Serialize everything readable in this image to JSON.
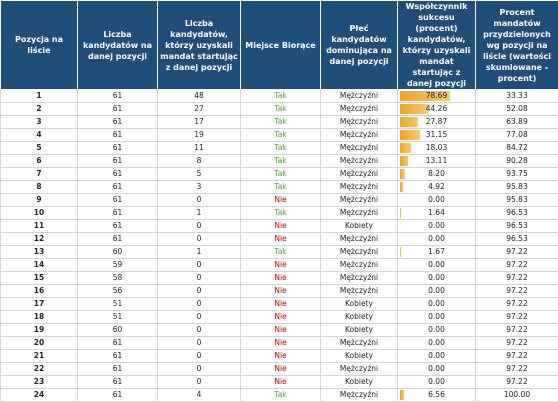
{
  "table": {
    "headers": [
      "Pozycja na liście",
      "Liczba kandydatów na danej pozycji",
      "Liczba kandydatów, którzy uzyskali mandat startując z danej pozycji",
      "Miejsce Biorące",
      "Płeć kandydatów dominująca na danej pozycji",
      "Współczynnik sukcesu (procent) kandydatów, którzy uzyskali mandat startując z danej pozycji",
      "Procent mandatów przydzielonych wg pozycji na liście (wartości skumlowane - procent)"
    ],
    "rows": [
      [
        "1",
        "61",
        "48",
        "Tak",
        "Mężczyźni",
        "78.69",
        "33.33"
      ],
      [
        "2",
        "61",
        "27",
        "Tak",
        "Mężczyźni",
        "44.26",
        "52.08"
      ],
      [
        "3",
        "61",
        "17",
        "Tak",
        "Mężczyźni",
        "27.87",
        "63.89"
      ],
      [
        "4",
        "61",
        "19",
        "Tak",
        "Mężczyźni",
        "31.15",
        "77.08"
      ],
      [
        "5",
        "61",
        "11",
        "Tak",
        "Mężczyźni",
        "18.03",
        "84.72"
      ],
      [
        "6",
        "61",
        "8",
        "Tak",
        "Mężczyźni",
        "13.11",
        "90.28"
      ],
      [
        "7",
        "61",
        "5",
        "Tak",
        "Mężczyźni",
        "8.20",
        "93.75"
      ],
      [
        "8",
        "61",
        "3",
        "Tak",
        "Mężczyźni",
        "4.92",
        "95.83"
      ],
      [
        "9",
        "61",
        "0",
        "Nie",
        "Mężczyźni",
        "0.00",
        "95.83"
      ],
      [
        "10",
        "61",
        "1",
        "Tak",
        "Mężczyźni",
        "1.64",
        "96.53"
      ],
      [
        "11",
        "61",
        "0",
        "Nie",
        "Kobiety",
        "0.00",
        "96.53"
      ],
      [
        "12",
        "61",
        "0",
        "Nie",
        "Mężczyźni",
        "0.00",
        "96.53"
      ],
      [
        "13",
        "60",
        "1",
        "Tak",
        "Mężczyźni",
        "1.67",
        "97.22"
      ],
      [
        "14",
        "59",
        "0",
        "Nie",
        "Mężczyźni",
        "0.00",
        "97.22"
      ],
      [
        "15",
        "58",
        "0",
        "Nie",
        "Mężczyźni",
        "0.00",
        "97.22"
      ],
      [
        "16",
        "56",
        "0",
        "Nie",
        "Mężczyźni",
        "0.00",
        "97.22"
      ],
      [
        "17",
        "51",
        "0",
        "Nie",
        "Kobiety",
        "0.00",
        "97.22"
      ],
      [
        "18",
        "51",
        "0",
        "Nie",
        "Kobiety",
        "0.00",
        "97.22"
      ],
      [
        "19",
        "60",
        "0",
        "Nie",
        "Kobiety",
        "0.00",
        "97.22"
      ],
      [
        "20",
        "61",
        "0",
        "Nie",
        "Mężczyźni",
        "0.00",
        "97.22"
      ],
      [
        "21",
        "61",
        "0",
        "Nie",
        "Kobiety",
        "0.00",
        "97.22"
      ],
      [
        "22",
        "61",
        "0",
        "Nie",
        "Mężczyźni",
        "0.00",
        "97.22"
      ],
      [
        "23",
        "61",
        "0",
        "Nie",
        "Kobiety",
        "0.00",
        "97.22"
      ],
      [
        "24",
        "61",
        "4",
        "Tak",
        "Mężczyźni",
        "6.56",
        "100.00"
      ]
    ]
  }
}
